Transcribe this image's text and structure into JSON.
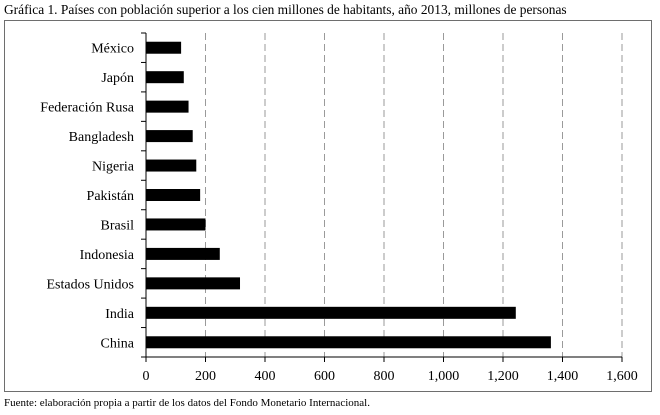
{
  "chart_data": {
    "type": "bar",
    "orientation": "horizontal",
    "title": "Gráfica 1. Países con población superior a los cien millones de habitants, año 2013, millones de personas",
    "categories": [
      "México",
      "Japón",
      "Federación Rusa",
      "Bangladesh",
      "Nigeria",
      "Pakistán",
      "Brasil",
      "Indonesia",
      "Estados Unidos",
      "India",
      "China"
    ],
    "values": [
      118,
      127,
      143,
      157,
      169,
      182,
      200,
      248,
      316,
      1243,
      1361
    ],
    "xlim": [
      0,
      1600
    ],
    "xticks": [
      0,
      200,
      400,
      600,
      800,
      1000,
      1200,
      1400,
      1600
    ],
    "xtick_labels": [
      "0",
      "200",
      "400",
      "600",
      "800",
      "1,000",
      "1,200",
      "1,400",
      "1,600"
    ],
    "grid": "vertical dashed",
    "bar_color": "#000000"
  },
  "source": "Fuente: elaboración propia a partir de los datos del Fondo Monetario Internacional."
}
